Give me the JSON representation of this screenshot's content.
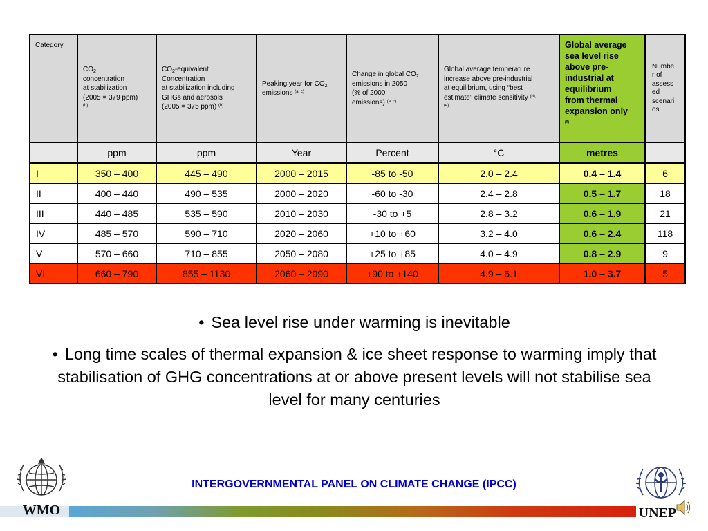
{
  "table": {
    "headers": {
      "category": "Category",
      "co2_line1": "CO",
      "co2_sub": "2",
      "co2_rest": "concentration",
      "co2_l2": "at stabilization",
      "co2_l3": "(2005 = 379 ppm)",
      "co2_note": "(b)",
      "co2eq_pre": "CO",
      "co2eq_sub": "2",
      "co2eq_rest": "-equivalent",
      "co2eq_l2": "Concentration",
      "co2eq_l3": "at stabilization including",
      "co2eq_l4": "GHGs and aerosols",
      "co2eq_l5": "(2005 = 375 ppm)",
      "co2eq_note": "(b)",
      "peak_pre": "Peaking year for CO",
      "peak_sub": "2",
      "peak_l2": "emissions",
      "peak_note": "(a, c)",
      "change_pre": "Change in global CO",
      "change_sub": "2",
      "change_l2": "emissions in 2050",
      "change_l3": "(% of 2000",
      "change_l4": "emissions)",
      "change_note": "(a, c)",
      "temp_l1": "Global average temperature",
      "temp_l2": "increase above pre-industrial",
      "temp_l3": "at equilibrium, using “best",
      "temp_l4": "estimate” climate sensitivity",
      "temp_note1": "(d),",
      "temp_note2": "(e)",
      "sea_l1": "Global average",
      "sea_l2": "sea level rise",
      "sea_l3": "above pre-",
      "sea_l4": "industrial at",
      "sea_l5": "equilibrium",
      "sea_l6": "from thermal",
      "sea_l7": "expansion only",
      "sea_note": "(f)",
      "num_l1": "Numbe",
      "num_l2": "r of",
      "num_l3": "assess",
      "num_l4": "ed",
      "num_l5": "scenari",
      "num_l6": "os"
    },
    "units": [
      "",
      "ppm",
      "ppm",
      "Year",
      "Percent",
      "°C",
      "metres",
      ""
    ],
    "rows": [
      {
        "category": "I",
        "co2": "350 – 400",
        "co2eq": "445 – 490",
        "peak": "2000 – 2015",
        "change": "-85 to -50",
        "temp": "2.0 – 2.4",
        "sea": "0.4 – 1.4",
        "num": "6"
      },
      {
        "category": "II",
        "co2": "400 – 440",
        "co2eq": "490 – 535",
        "peak": "2000 – 2020",
        "change": "-60 to -30",
        "temp": "2.4 – 2.8",
        "sea": "0.5 – 1.7",
        "num": "18"
      },
      {
        "category": "III",
        "co2": "440 – 485",
        "co2eq": "535 – 590",
        "peak": "2010 – 2030",
        "change": "-30 to +5",
        "temp": "2.8 – 3.2",
        "sea": "0.6 – 1.9",
        "num": "21"
      },
      {
        "category": "IV",
        "co2": "485 – 570",
        "co2eq": "590 – 710",
        "peak": "2020 – 2060",
        "change": "+10 to +60",
        "temp": "3.2 – 4.0",
        "sea": "0.6 – 2.4",
        "num": "118"
      },
      {
        "category": "V",
        "co2": "570 – 660",
        "co2eq": "710 – 855",
        "peak": "2050 – 2080",
        "change": "+25 to +85",
        "temp": "4.0 – 4.9",
        "sea": "0.8 – 2.9",
        "num": "9"
      },
      {
        "category": "VI",
        "co2": "660 – 790",
        "co2eq": "855 – 1130",
        "peak": "2060 – 2090",
        "change": "+90 to +140",
        "temp": "4.9 – 6.1",
        "sea": "1.0 – 3.7",
        "num": "5"
      }
    ],
    "colors": {
      "header_bg": "#d9d9d9",
      "sea_col": "#9acd32",
      "row_I": "#ffff99",
      "row_VI": "#ff3300"
    }
  },
  "bullets": [
    {
      "marker": "•",
      "text": "Sea level rise under warming is inevitable"
    },
    {
      "marker": "•",
      "text": "Long time scales of thermal expansion & ice sheet response to warming imply that stabilisation of GHG concentrations at or above present levels will not stabilise sea level for many centuries"
    }
  ],
  "footer": {
    "title": "INTERGOVERNMENTAL PANEL ON CLIMATE CHANGE (IPCC)",
    "title_color": "#0000cc",
    "logo_left": "WMO",
    "logo_right": "UNEP",
    "logo_left_icon": "wmo-emblem-icon",
    "logo_right_icon": "unep-emblem-icon",
    "speaker_icon": "speaker-icon"
  }
}
